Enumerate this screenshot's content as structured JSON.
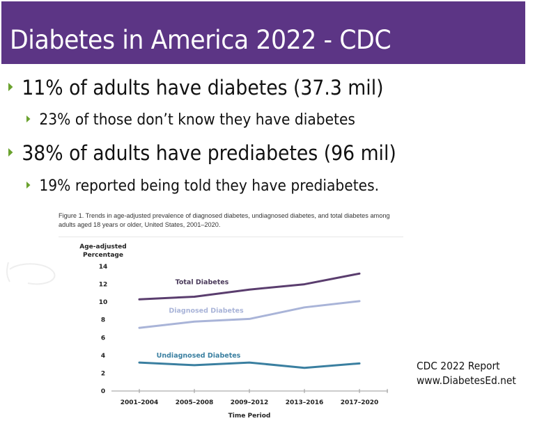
{
  "slide": {
    "title": "Diabetes in America 2022 - CDC",
    "colors": {
      "title_bar": "#5c3585",
      "bullet_arrow": "#6aa22e",
      "text": "#111111"
    },
    "bullets": [
      {
        "level": 1,
        "text": "11% of adults have diabetes (37.3 mil)"
      },
      {
        "level": 2,
        "text": "23% of those don’t know they have diabetes"
      },
      {
        "level": 1,
        "text": "38% of adults have prediabetes (96 mil)"
      },
      {
        "level": 2,
        "text": "19% reported being told they have prediabetes."
      }
    ],
    "source_note": {
      "line1": "CDC 2022 Report",
      "line2": "www.DiabetesEd.net"
    }
  },
  "chart_data": {
    "type": "line",
    "title": "Figure 1. Trends in age-adjusted prevalence of diagnosed diabetes, undiagnosed diabetes, and total diabetes among adults aged 18 years or older, United States, 2001–2020.",
    "xlabel": "Time Period",
    "ylabel_line1": "Age-adjusted",
    "ylabel_line2": "Percentage",
    "categories": [
      "2001–2004",
      "2005–2008",
      "2009–2012",
      "2013–2016",
      "2017–2020"
    ],
    "ylim": [
      0,
      14
    ],
    "yticks": [
      0,
      2,
      4,
      6,
      8,
      10,
      12,
      14
    ],
    "grid": false,
    "legend": "inline labels above lines",
    "series": [
      {
        "name": "Total Diabetes",
        "color": "#5a3d6e",
        "values": [
          10.3,
          10.6,
          11.4,
          12.0,
          13.2
        ]
      },
      {
        "name": "Diagnosed Diabetes",
        "color": "#a9b4d8",
        "values": [
          7.1,
          7.8,
          8.1,
          9.4,
          10.1
        ]
      },
      {
        "name": "Undiagnosed Diabetes",
        "color": "#3a7fa0",
        "values": [
          3.2,
          2.9,
          3.2,
          2.6,
          3.1
        ]
      }
    ]
  }
}
